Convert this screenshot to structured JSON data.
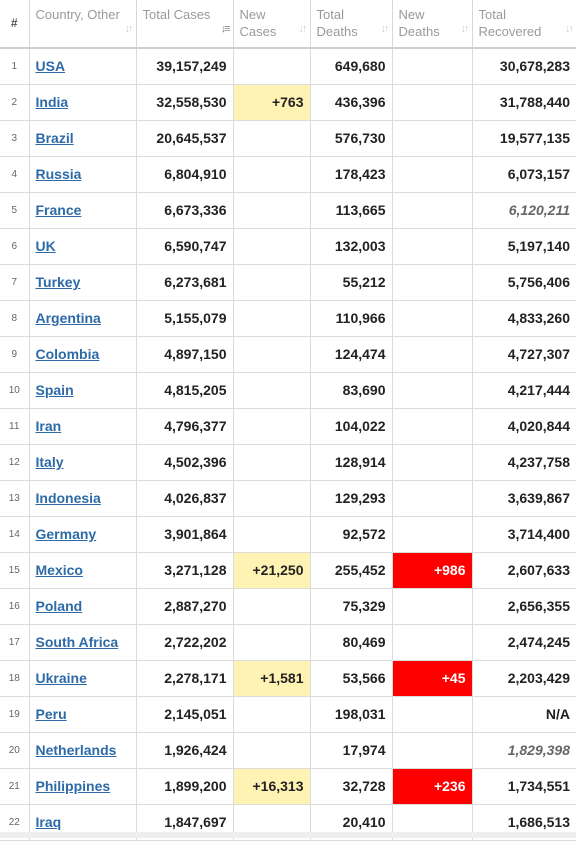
{
  "colors": {
    "link": "#2d6aa7",
    "new_cases_highlight": "#fff3b3",
    "new_deaths_highlight": "#ff0000"
  },
  "headers": [
    {
      "label": "#",
      "sort_icon": "sort-icon"
    },
    {
      "label": "Country, Other",
      "sort_icon": "sort-icon"
    },
    {
      "label": "Total Cases",
      "sort_icon": "sort-desc-active-icon"
    },
    {
      "label": "New Cases",
      "sort_icon": "sort-icon"
    },
    {
      "label": "Total Deaths",
      "sort_icon": "sort-icon"
    },
    {
      "label": "New Deaths",
      "sort_icon": "sort-icon"
    },
    {
      "label": "Total Recovered",
      "sort_icon": "sort-icon"
    }
  ],
  "rows": [
    {
      "num": "1",
      "country": "USA",
      "total_cases": "39,157,249",
      "new_cases": "",
      "total_deaths": "649,680",
      "new_deaths": "",
      "total_recovered": "30,678,283",
      "recovered_estimated": false
    },
    {
      "num": "2",
      "country": "India",
      "total_cases": "32,558,530",
      "new_cases": "+763",
      "total_deaths": "436,396",
      "new_deaths": "",
      "total_recovered": "31,788,440",
      "recovered_estimated": false
    },
    {
      "num": "3",
      "country": "Brazil",
      "total_cases": "20,645,537",
      "new_cases": "",
      "total_deaths": "576,730",
      "new_deaths": "",
      "total_recovered": "19,577,135",
      "recovered_estimated": false
    },
    {
      "num": "4",
      "country": "Russia",
      "total_cases": "6,804,910",
      "new_cases": "",
      "total_deaths": "178,423",
      "new_deaths": "",
      "total_recovered": "6,073,157",
      "recovered_estimated": false
    },
    {
      "num": "5",
      "country": "France",
      "total_cases": "6,673,336",
      "new_cases": "",
      "total_deaths": "113,665",
      "new_deaths": "",
      "total_recovered": "6,120,211",
      "recovered_estimated": true
    },
    {
      "num": "6",
      "country": "UK",
      "total_cases": "6,590,747",
      "new_cases": "",
      "total_deaths": "132,003",
      "new_deaths": "",
      "total_recovered": "5,197,140",
      "recovered_estimated": false
    },
    {
      "num": "7",
      "country": "Turkey",
      "total_cases": "6,273,681",
      "new_cases": "",
      "total_deaths": "55,212",
      "new_deaths": "",
      "total_recovered": "5,756,406",
      "recovered_estimated": false
    },
    {
      "num": "8",
      "country": "Argentina",
      "total_cases": "5,155,079",
      "new_cases": "",
      "total_deaths": "110,966",
      "new_deaths": "",
      "total_recovered": "4,833,260",
      "recovered_estimated": false
    },
    {
      "num": "9",
      "country": "Colombia",
      "total_cases": "4,897,150",
      "new_cases": "",
      "total_deaths": "124,474",
      "new_deaths": "",
      "total_recovered": "4,727,307",
      "recovered_estimated": false
    },
    {
      "num": "10",
      "country": "Spain",
      "total_cases": "4,815,205",
      "new_cases": "",
      "total_deaths": "83,690",
      "new_deaths": "",
      "total_recovered": "4,217,444",
      "recovered_estimated": false
    },
    {
      "num": "11",
      "country": "Iran",
      "total_cases": "4,796,377",
      "new_cases": "",
      "total_deaths": "104,022",
      "new_deaths": "",
      "total_recovered": "4,020,844",
      "recovered_estimated": false
    },
    {
      "num": "12",
      "country": "Italy",
      "total_cases": "4,502,396",
      "new_cases": "",
      "total_deaths": "128,914",
      "new_deaths": "",
      "total_recovered": "4,237,758",
      "recovered_estimated": false
    },
    {
      "num": "13",
      "country": "Indonesia",
      "total_cases": "4,026,837",
      "new_cases": "",
      "total_deaths": "129,293",
      "new_deaths": "",
      "total_recovered": "3,639,867",
      "recovered_estimated": false
    },
    {
      "num": "14",
      "country": "Germany",
      "total_cases": "3,901,864",
      "new_cases": "",
      "total_deaths": "92,572",
      "new_deaths": "",
      "total_recovered": "3,714,400",
      "recovered_estimated": false
    },
    {
      "num": "15",
      "country": "Mexico",
      "total_cases": "3,271,128",
      "new_cases": "+21,250",
      "total_deaths": "255,452",
      "new_deaths": "+986",
      "total_recovered": "2,607,633",
      "recovered_estimated": false
    },
    {
      "num": "16",
      "country": "Poland",
      "total_cases": "2,887,270",
      "new_cases": "",
      "total_deaths": "75,329",
      "new_deaths": "",
      "total_recovered": "2,656,355",
      "recovered_estimated": false
    },
    {
      "num": "17",
      "country": "South Africa",
      "total_cases": "2,722,202",
      "new_cases": "",
      "total_deaths": "80,469",
      "new_deaths": "",
      "total_recovered": "2,474,245",
      "recovered_estimated": false
    },
    {
      "num": "18",
      "country": "Ukraine",
      "total_cases": "2,278,171",
      "new_cases": "+1,581",
      "total_deaths": "53,566",
      "new_deaths": "+45",
      "total_recovered": "2,203,429",
      "recovered_estimated": false
    },
    {
      "num": "19",
      "country": "Peru",
      "total_cases": "2,145,051",
      "new_cases": "",
      "total_deaths": "198,031",
      "new_deaths": "",
      "total_recovered": "N/A",
      "recovered_estimated": false
    },
    {
      "num": "20",
      "country": "Netherlands",
      "total_cases": "1,926,424",
      "new_cases": "",
      "total_deaths": "17,974",
      "new_deaths": "",
      "total_recovered": "1,829,398",
      "recovered_estimated": true
    },
    {
      "num": "21",
      "country": "Philippines",
      "total_cases": "1,899,200",
      "new_cases": "+16,313",
      "total_deaths": "32,728",
      "new_deaths": "+236",
      "total_recovered": "1,734,551",
      "recovered_estimated": false
    },
    {
      "num": "22",
      "country": "Iraq",
      "total_cases": "1,847,697",
      "new_cases": "",
      "total_deaths": "20,410",
      "new_deaths": "",
      "total_recovered": "1,686,513",
      "recovered_estimated": false
    }
  ]
}
